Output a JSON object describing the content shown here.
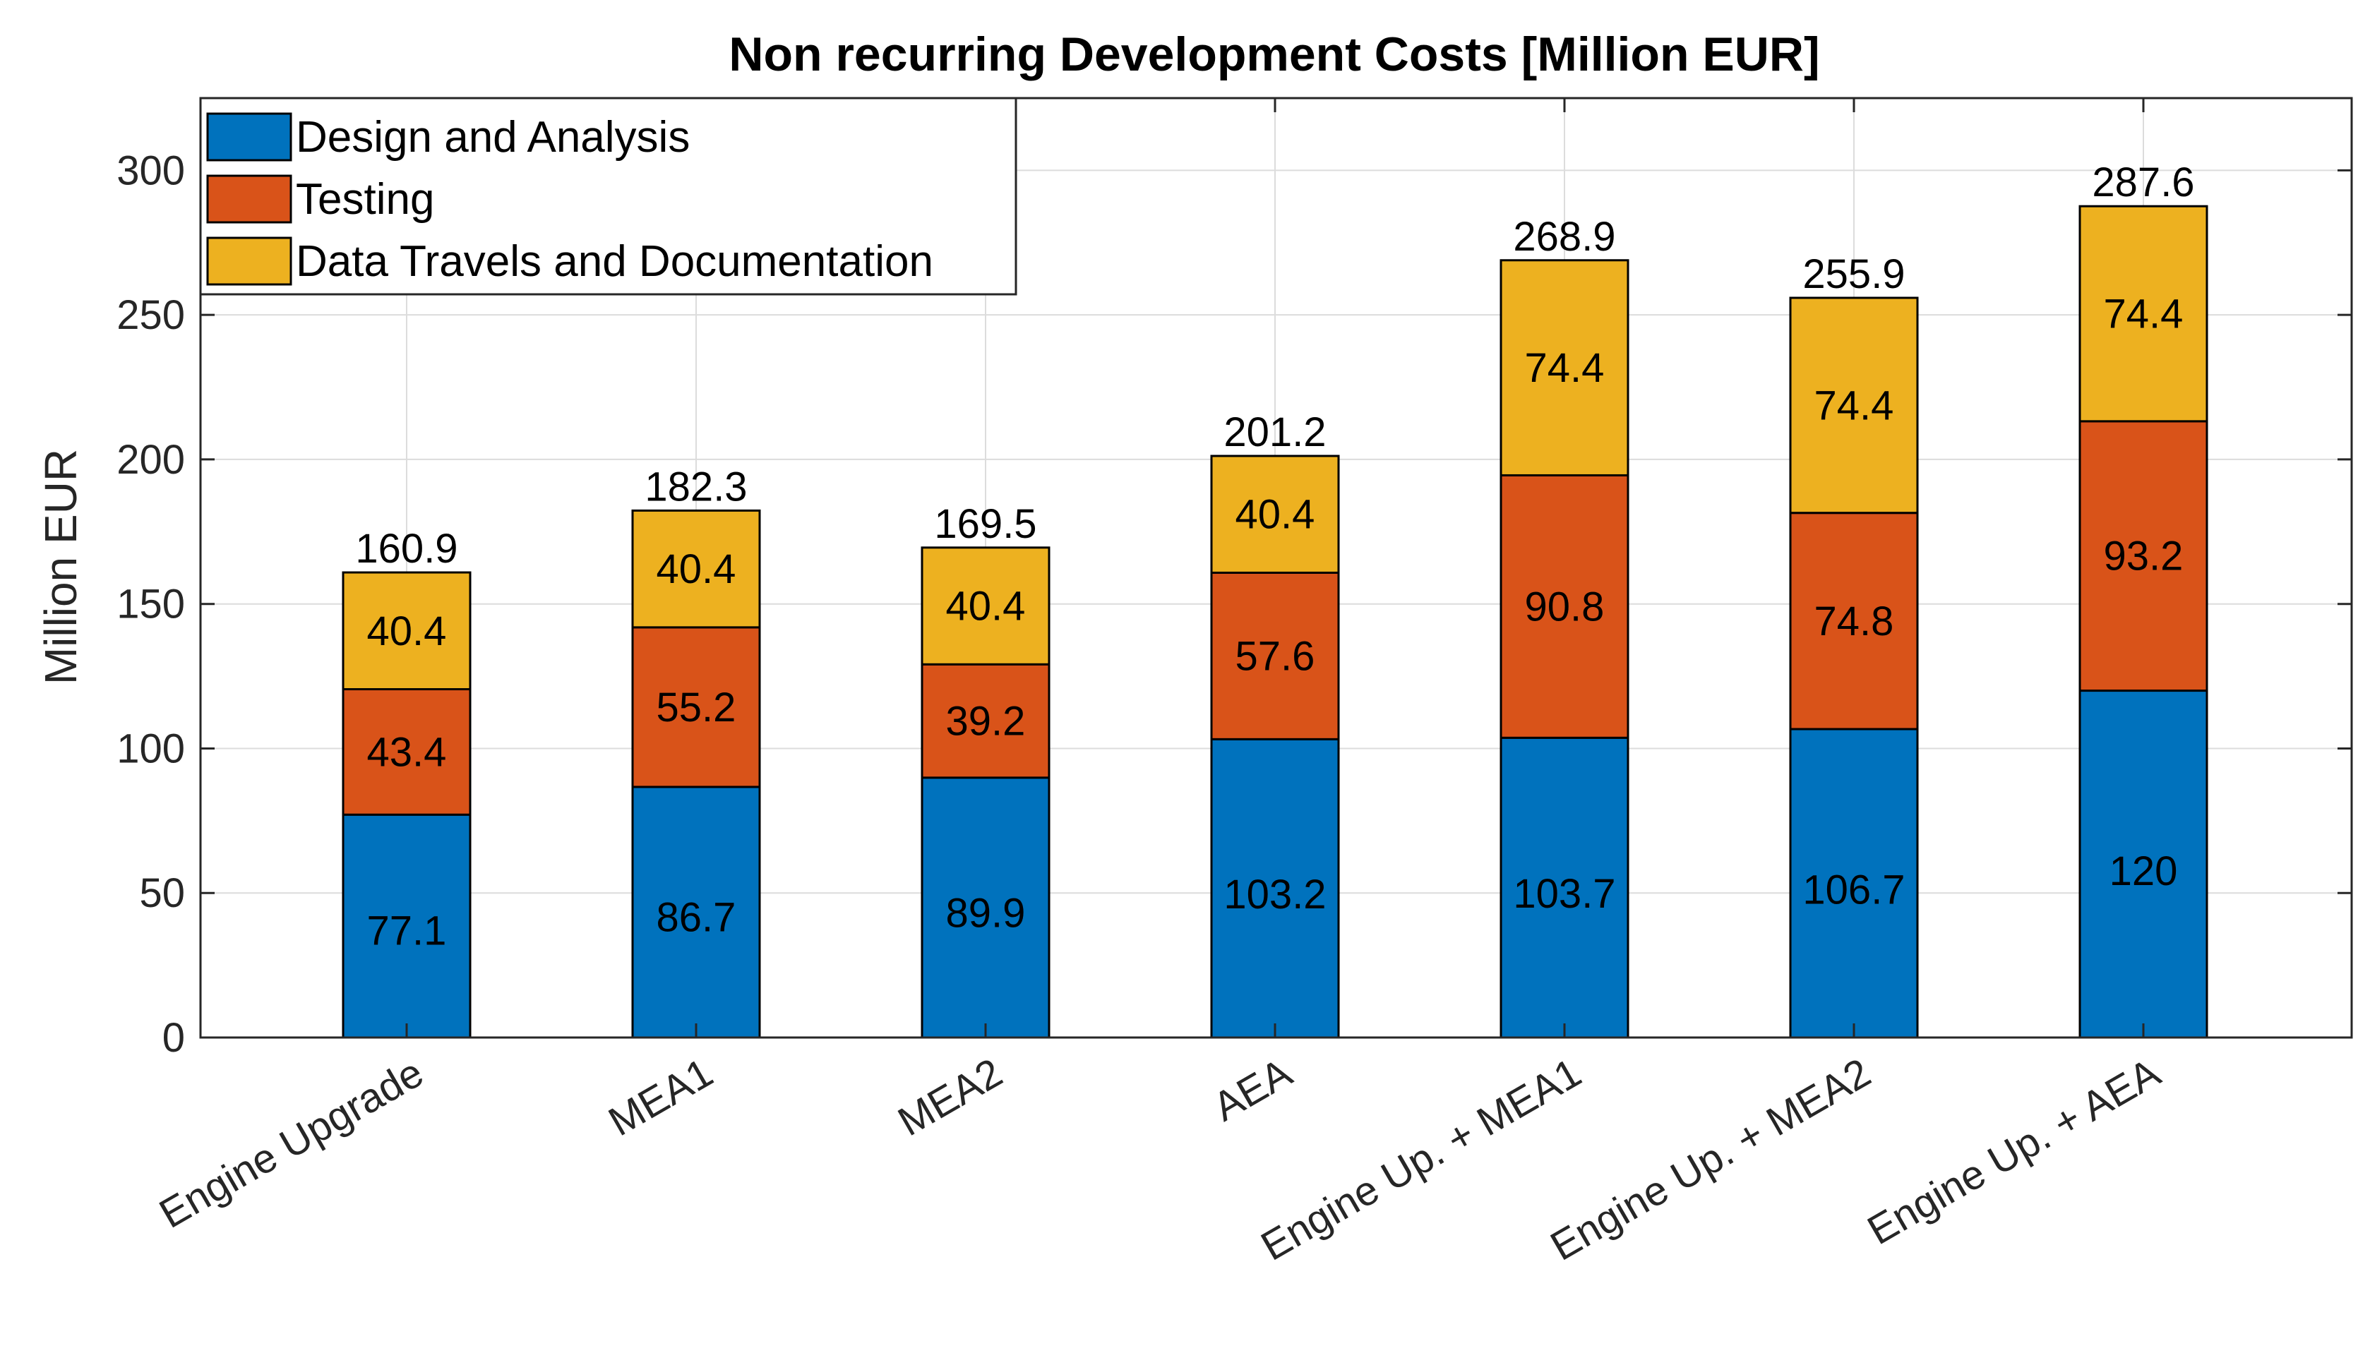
{
  "chart_data": {
    "type": "bar",
    "stacked": true,
    "title": "Non recurring Development Costs [Million EUR]",
    "xlabel": "",
    "ylabel": "Million EUR",
    "ylim": [
      0,
      325
    ],
    "yticks": [
      0,
      50,
      100,
      150,
      200,
      250,
      300
    ],
    "grid": true,
    "legend_position": "top-left",
    "categories": [
      "Engine Upgrade",
      "MEA1",
      "MEA2",
      "AEA",
      "Engine Up. + MEA1",
      "Engine Up. + MEA2",
      "Engine Up. + AEA"
    ],
    "series": [
      {
        "name": "Design and Analysis",
        "color": "#0072BD",
        "values": [
          77.1,
          86.7,
          89.9,
          103.2,
          103.7,
          106.7,
          120
        ]
      },
      {
        "name": "Testing",
        "color": "#D95319",
        "values": [
          43.4,
          55.2,
          39.2,
          57.6,
          90.8,
          74.8,
          93.2
        ]
      },
      {
        "name": "Data Travels and Documentation",
        "color": "#EDB120",
        "values": [
          40.4,
          40.4,
          40.4,
          40.4,
          74.4,
          74.4,
          74.4
        ]
      }
    ],
    "totals": [
      160.9,
      182.3,
      169.5,
      201.2,
      268.9,
      255.9,
      287.6
    ]
  }
}
